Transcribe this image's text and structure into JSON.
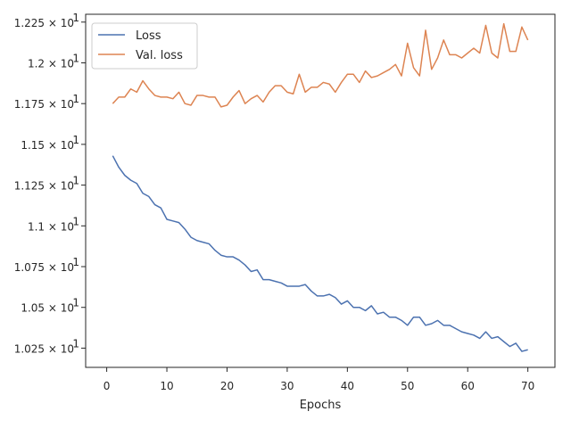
{
  "chart_data": {
    "type": "line",
    "xlabel": "Epochs",
    "ylabel": "",
    "xlim": [
      -3.5,
      74.5
    ],
    "ylim": [
      10.132,
      12.298
    ],
    "xticks": [
      0,
      10,
      20,
      30,
      40,
      50,
      60,
      70
    ],
    "xtick_labels": [
      "0",
      "10",
      "20",
      "30",
      "40",
      "50",
      "60",
      "70"
    ],
    "yticks": [
      10.25,
      10.5,
      10.75,
      11.0,
      11.25,
      11.5,
      11.75,
      12.0,
      12.25
    ],
    "ytick_labels": [
      "1.025 × 10",
      "1.05 × 10",
      "1.075 × 10",
      "1.1 × 10",
      "1.125 × 10",
      "1.15 × 10",
      "1.175 × 10",
      "1.2 × 10",
      "1.225 × 10"
    ],
    "ytick_exponent": "1",
    "legend_position": "top-left",
    "grid": false,
    "x": [
      1,
      2,
      3,
      4,
      5,
      6,
      7,
      8,
      9,
      10,
      11,
      12,
      13,
      14,
      15,
      16,
      17,
      18,
      19,
      20,
      21,
      22,
      23,
      24,
      25,
      26,
      27,
      28,
      29,
      30,
      31,
      32,
      33,
      34,
      35,
      36,
      37,
      38,
      39,
      40,
      41,
      42,
      43,
      44,
      45,
      46,
      47,
      48,
      49,
      50,
      51,
      52,
      53,
      54,
      55,
      56,
      57,
      58,
      59,
      60,
      61,
      62,
      63,
      64,
      65,
      66,
      67,
      68,
      69,
      70
    ],
    "series": [
      {
        "name": "Loss",
        "color": "#4c72b0",
        "values": [
          11.43,
          11.36,
          11.31,
          11.28,
          11.26,
          11.2,
          11.18,
          11.13,
          11.11,
          11.04,
          11.03,
          11.02,
          10.98,
          10.93,
          10.91,
          10.9,
          10.89,
          10.85,
          10.82,
          10.81,
          10.81,
          10.79,
          10.76,
          10.72,
          10.73,
          10.67,
          10.67,
          10.66,
          10.65,
          10.63,
          10.63,
          10.63,
          10.64,
          10.6,
          10.57,
          10.57,
          10.58,
          10.56,
          10.52,
          10.54,
          10.5,
          10.5,
          10.48,
          10.51,
          10.46,
          10.47,
          10.44,
          10.44,
          10.42,
          10.39,
          10.44,
          10.44,
          10.39,
          10.4,
          10.42,
          10.39,
          10.39,
          10.37,
          10.35,
          10.34,
          10.33,
          10.31,
          10.35,
          10.31,
          10.32,
          10.29,
          10.26,
          10.28,
          10.23,
          10.24
        ]
      },
      {
        "name": "Val. loss",
        "color": "#dd8452",
        "values": [
          11.75,
          11.79,
          11.79,
          11.84,
          11.82,
          11.89,
          11.84,
          11.8,
          11.79,
          11.79,
          11.78,
          11.82,
          11.75,
          11.74,
          11.8,
          11.8,
          11.79,
          11.79,
          11.73,
          11.74,
          11.79,
          11.83,
          11.75,
          11.78,
          11.8,
          11.76,
          11.82,
          11.86,
          11.86,
          11.82,
          11.81,
          11.93,
          11.82,
          11.85,
          11.85,
          11.88,
          11.87,
          11.82,
          11.88,
          11.93,
          11.93,
          11.88,
          11.95,
          11.91,
          11.92,
          11.94,
          11.96,
          11.99,
          11.92,
          12.12,
          11.97,
          11.92,
          12.2,
          11.96,
          12.03,
          12.14,
          12.05,
          12.05,
          12.03,
          12.06,
          12.09,
          12.06,
          12.23,
          12.06,
          12.03,
          12.24,
          12.07,
          12.07,
          12.22,
          12.14
        ]
      }
    ]
  }
}
